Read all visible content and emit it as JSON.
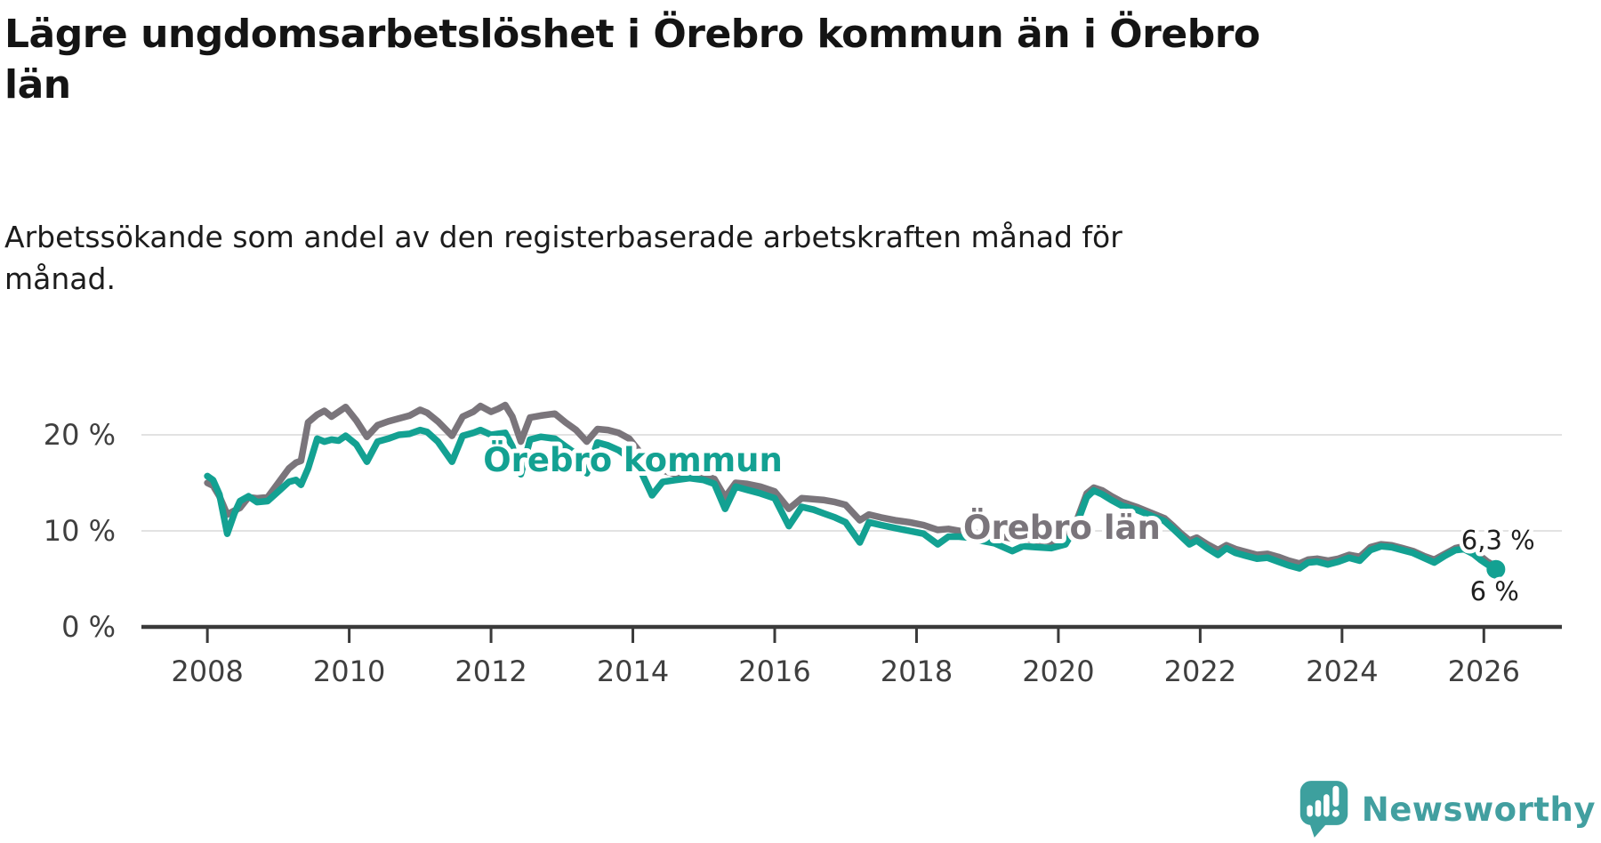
{
  "header": {
    "title": "Lägre ungdomsarbetslöshet i Örebro kommun än i Örebro\nlän",
    "subtitle": "Arbetssökande som andel av den registerbaserade arbetskraften månad för\nmånad."
  },
  "branding": {
    "name": "Newsworthy",
    "logo_color": "#3da09e",
    "text_color": "#429fa0"
  },
  "colors": {
    "kommun_line": "#13a192",
    "lan_line": "#7a757b",
    "gridline": "#e2e2e2",
    "axis": "#3a3a3a",
    "tick_text": "#3f3f3f",
    "end_label_text": "#1f1f1f",
    "background": "#ffffff"
  },
  "chart_data": {
    "type": "line",
    "title": "Lägre ungdomsarbetslöshet i Örebro kommun än i Örebro län",
    "subtitle": "Arbetssökande som andel av den registerbaserade arbetskraften månad för månad.",
    "unit": "%",
    "grid": "horizontal-only",
    "legend_position": "inline-labels",
    "x_axis": {
      "min": 2007.07,
      "max": 2027.1,
      "ticks": [
        {
          "value": 2008,
          "label": "2008"
        },
        {
          "value": 2010,
          "label": "2010"
        },
        {
          "value": 2012,
          "label": "2012"
        },
        {
          "value": 2014,
          "label": "2014"
        },
        {
          "value": 2016,
          "label": "2016"
        },
        {
          "value": 2018,
          "label": "2018"
        },
        {
          "value": 2020,
          "label": "2020"
        },
        {
          "value": 2022,
          "label": "2022"
        },
        {
          "value": 2024,
          "label": "2024"
        },
        {
          "value": 2026,
          "label": "2026"
        }
      ]
    },
    "y_axis": {
      "min": 0,
      "max": 25,
      "ticks": [
        {
          "value": 0,
          "label": "0 %"
        },
        {
          "value": 10,
          "label": "10 %"
        },
        {
          "value": 20,
          "label": "20 %"
        }
      ]
    },
    "x": [
      2008.0,
      2008.08,
      2008.17,
      2008.28,
      2008.38,
      2008.46,
      2008.58,
      2008.7,
      2008.85,
      2009.0,
      2009.15,
      2009.25,
      2009.32,
      2009.42,
      2009.55,
      2009.65,
      2009.75,
      2009.85,
      2009.95,
      2010.1,
      2010.25,
      2010.4,
      2010.55,
      2010.7,
      2010.85,
      2011.0,
      2011.1,
      2011.25,
      2011.45,
      2011.6,
      2011.75,
      2011.85,
      2012.0,
      2012.1,
      2012.2,
      2012.3,
      2012.42,
      2012.55,
      2012.7,
      2012.9,
      2013.05,
      2013.2,
      2013.35,
      2013.5,
      2013.65,
      2013.8,
      2013.95,
      2014.1,
      2014.27,
      2014.42,
      2014.6,
      2014.8,
      2015.0,
      2015.15,
      2015.3,
      2015.45,
      2015.6,
      2015.8,
      2016.0,
      2016.2,
      2016.38,
      2016.55,
      2016.7,
      2016.85,
      2017.0,
      2017.2,
      2017.33,
      2017.5,
      2017.7,
      2017.9,
      2018.1,
      2018.3,
      2018.45,
      2018.6,
      2018.75,
      2018.9,
      2019.1,
      2019.35,
      2019.5,
      2019.7,
      2019.9,
      2020.1,
      2020.25,
      2020.4,
      2020.5,
      2020.62,
      2020.75,
      2020.9,
      2021.1,
      2021.3,
      2021.5,
      2021.62,
      2021.72,
      2021.85,
      2021.95,
      2022.1,
      2022.25,
      2022.37,
      2022.5,
      2022.65,
      2022.8,
      2022.95,
      2023.1,
      2023.25,
      2023.4,
      2023.52,
      2023.65,
      2023.8,
      2023.95,
      2024.1,
      2024.25,
      2024.4,
      2024.55,
      2024.7,
      2024.85,
      2025.0,
      2025.15,
      2025.3,
      2025.45,
      2025.6,
      2025.72,
      2025.85,
      2025.95,
      2026.05,
      2026.17
    ],
    "series": [
      {
        "id": "lan",
        "name": "Örebro län",
        "color": "#7a757b",
        "final_value": 6.3,
        "label": {
          "text": "Örebro län",
          "x": 2020.05,
          "y": 10.35
        },
        "end_label": {
          "text": "6,3 %",
          "x": 2026.2,
          "y": 9.05
        },
        "end_dot_radius": 7,
        "values": [
          15.0,
          14.7,
          13.6,
          11.7,
          12.1,
          12.4,
          13.5,
          13.4,
          13.5,
          15.0,
          16.5,
          17.1,
          17.3,
          21.3,
          22.1,
          22.5,
          21.9,
          22.4,
          22.9,
          21.5,
          19.8,
          21.0,
          21.4,
          21.7,
          22.0,
          22.6,
          22.3,
          21.4,
          19.9,
          21.9,
          22.4,
          23.0,
          22.4,
          22.7,
          23.1,
          21.9,
          19.3,
          21.8,
          22.0,
          22.2,
          21.3,
          20.5,
          19.3,
          20.6,
          20.5,
          20.2,
          19.6,
          18.2,
          16.6,
          16.3,
          15.9,
          16.0,
          15.8,
          15.4,
          13.5,
          15.0,
          14.9,
          14.6,
          14.1,
          12.3,
          13.4,
          13.3,
          13.2,
          13.0,
          12.7,
          11.1,
          11.7,
          11.4,
          11.1,
          10.9,
          10.6,
          10.1,
          10.2,
          10.0,
          9.9,
          9.7,
          9.5,
          9.2,
          9.2,
          9.0,
          8.9,
          9.2,
          10.9,
          13.9,
          14.5,
          14.2,
          13.6,
          13.0,
          12.5,
          11.9,
          11.3,
          10.5,
          9.8,
          9.0,
          9.3,
          8.6,
          8.0,
          8.5,
          8.1,
          7.8,
          7.5,
          7.6,
          7.3,
          6.9,
          6.6,
          7.0,
          7.1,
          6.9,
          7.1,
          7.5,
          7.3,
          8.3,
          8.6,
          8.5,
          8.2,
          7.9,
          7.4,
          7.0,
          7.6,
          8.2,
          8.4,
          7.9,
          7.4,
          6.8,
          6.3
        ]
      },
      {
        "id": "kommun",
        "name": "Örebro kommun",
        "color": "#13a192",
        "final_value": 6.0,
        "label": {
          "text": "Örebro kommun",
          "x": 2014.0,
          "y": 17.4
        },
        "end_label": {
          "text": "6 %",
          "x": 2026.15,
          "y": 3.7
        },
        "end_dot_radius": 10.5,
        "values": [
          15.7,
          15.3,
          13.8,
          9.7,
          11.8,
          13.1,
          13.6,
          13.0,
          13.1,
          14.1,
          15.1,
          15.3,
          14.8,
          16.5,
          19.6,
          19.3,
          19.5,
          19.4,
          19.9,
          19.0,
          17.2,
          19.3,
          19.6,
          20.0,
          20.1,
          20.5,
          20.3,
          19.3,
          17.2,
          19.9,
          20.2,
          20.5,
          20.0,
          20.1,
          20.2,
          18.8,
          15.9,
          19.5,
          19.8,
          19.6,
          18.8,
          18.0,
          16.0,
          19.2,
          18.9,
          18.4,
          17.6,
          16.4,
          13.7,
          15.1,
          15.3,
          15.5,
          15.3,
          14.9,
          12.3,
          14.6,
          14.3,
          13.9,
          13.4,
          10.5,
          12.5,
          12.2,
          11.8,
          11.4,
          10.9,
          8.8,
          10.9,
          10.6,
          10.3,
          10.0,
          9.7,
          8.6,
          9.4,
          9.4,
          9.3,
          9.0,
          8.7,
          7.9,
          8.4,
          8.3,
          8.2,
          8.6,
          10.5,
          13.5,
          14.2,
          13.8,
          13.2,
          12.6,
          12.2,
          11.6,
          11.0,
          10.2,
          9.5,
          8.6,
          9.0,
          8.2,
          7.5,
          8.2,
          7.7,
          7.4,
          7.1,
          7.2,
          6.8,
          6.4,
          6.1,
          6.7,
          6.8,
          6.5,
          6.8,
          7.2,
          6.9,
          8.0,
          8.4,
          8.3,
          8.0,
          7.7,
          7.2,
          6.7,
          7.4,
          8.0,
          8.1,
          7.6,
          7.0,
          6.5,
          6.0
        ]
      }
    ]
  }
}
